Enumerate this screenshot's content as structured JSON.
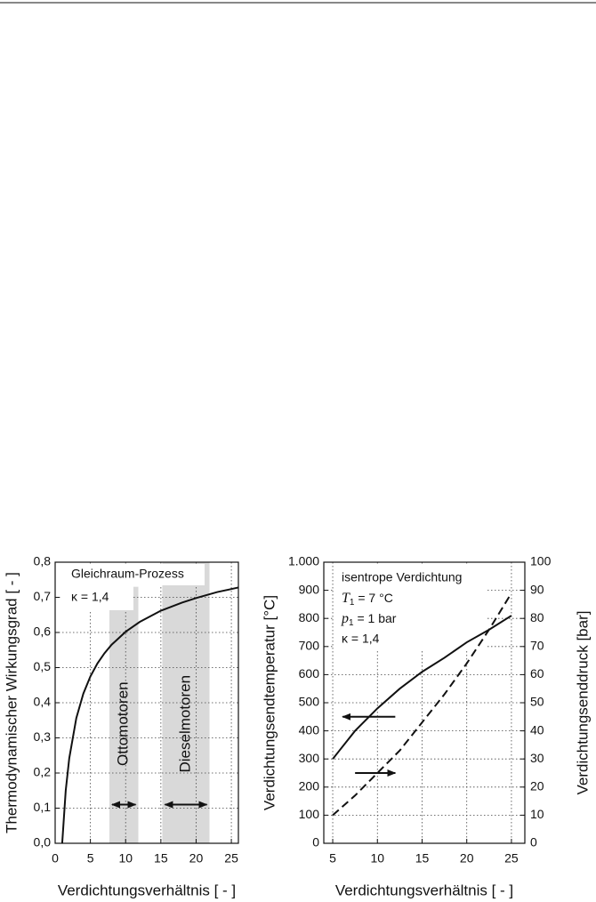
{
  "chart_data": [
    {
      "type": "line",
      "x_label": "Verdichtungsverhältnis [ - ]",
      "y_label": "Thermodynamischer Wirkungsgrad [ - ]",
      "xlim": [
        0,
        26
      ],
      "xticks": [
        0,
        5,
        10,
        15,
        20,
        25
      ],
      "ylim": [
        0,
        0.8
      ],
      "yticks": [
        {
          "value": 0,
          "label": "0,0"
        },
        {
          "value": 0.1,
          "label": "0,1"
        },
        {
          "value": 0.2,
          "label": "0,2"
        },
        {
          "value": 0.3,
          "label": "0,3"
        },
        {
          "value": 0.4,
          "label": "0,4"
        },
        {
          "value": 0.5,
          "label": "0,5"
        },
        {
          "value": 0.6,
          "label": "0,6"
        },
        {
          "value": 0.7,
          "label": "0,7"
        },
        {
          "value": 0.8,
          "label": "0,8"
        }
      ],
      "grid": true,
      "x": [
        1,
        1.5,
        2,
        3,
        4,
        5,
        6,
        7,
        8,
        10,
        12,
        15,
        18,
        20,
        23,
        26
      ],
      "series": [
        {
          "color": "#111111",
          "line_style": "solid",
          "values": [
            0,
            0.15,
            0.242,
            0.356,
            0.426,
            0.475,
            0.512,
            0.541,
            0.565,
            0.602,
            0.63,
            0.662,
            0.685,
            0.698,
            0.715,
            0.728
          ]
        }
      ],
      "bands": [
        {
          "label": "Ottomotoren",
          "x": [
            7.7,
            11.8
          ],
          "top": 0.73
        },
        {
          "label": "Dieselmotoren",
          "x": [
            15.2,
            21.9
          ],
          "top": 0.8
        }
      ],
      "annotations": [
        "Gleichraum-Prozess",
        "κ = 1,4"
      ]
    },
    {
      "type": "line",
      "x_label": "Verdichtungsverhältnis [ - ]",
      "y_label": "Verdichtungsendtemperatur [°C]",
      "y2_label": "Verdichtungsenddruck [bar]",
      "xlim": [
        4,
        26.5
      ],
      "xticks": [
        5,
        10,
        15,
        20,
        25
      ],
      "ylim": [
        0,
        1000
      ],
      "yticks": [
        0,
        100,
        200,
        300,
        400,
        500,
        600,
        700,
        800,
        900,
        {
          "value": 1000,
          "label": "1.000"
        }
      ],
      "y2lim": [
        0,
        100
      ],
      "y2ticks": [
        0,
        10,
        20,
        30,
        40,
        50,
        60,
        70,
        80,
        90,
        100
      ],
      "grid": true,
      "x": [
        5,
        7.5,
        10,
        12.5,
        15,
        17.5,
        20,
        22.5,
        25
      ],
      "series": [
        {
          "color": "#111111",
          "line_style": "solid",
          "values": [
            300,
            400,
            480,
            550,
            610,
            660,
            715,
            760,
            810
          ]
        },
        {
          "color": "#111111",
          "line_style": "dashed",
          "axis": "y2",
          "values": [
            10,
            17,
            25,
            33,
            43,
            53,
            64,
            76,
            89
          ]
        }
      ],
      "annotations": [
        "isentrope Verdichtung",
        {
          "italic": "T",
          "sub": "1",
          "text": " = 7 °C"
        },
        {
          "italic": "p",
          "sub": "1",
          "text": " = 1 bar"
        },
        "κ = 1,4"
      ]
    }
  ]
}
